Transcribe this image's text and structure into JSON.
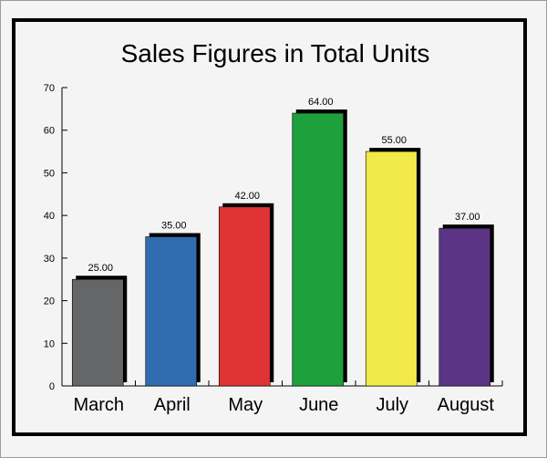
{
  "chart_data": {
    "type": "bar",
    "title": "Sales Figures in Total Units",
    "xlabel": "",
    "ylabel": "",
    "categories": [
      "March",
      "April",
      "May",
      "June",
      "July",
      "August"
    ],
    "values": [
      25,
      35,
      42,
      64,
      55,
      37
    ],
    "value_labels": [
      "25.00",
      "35.00",
      "42.00",
      "64.00",
      "55.00",
      "37.00"
    ],
    "colors": [
      "#646668",
      "#306cb0",
      "#e03434",
      "#1ea03c",
      "#f2ea4a",
      "#5c3486"
    ],
    "ylim": [
      0,
      70
    ],
    "yticks": [
      0,
      10,
      20,
      30,
      40,
      50,
      60,
      70
    ],
    "grid": false,
    "legend": "none"
  }
}
